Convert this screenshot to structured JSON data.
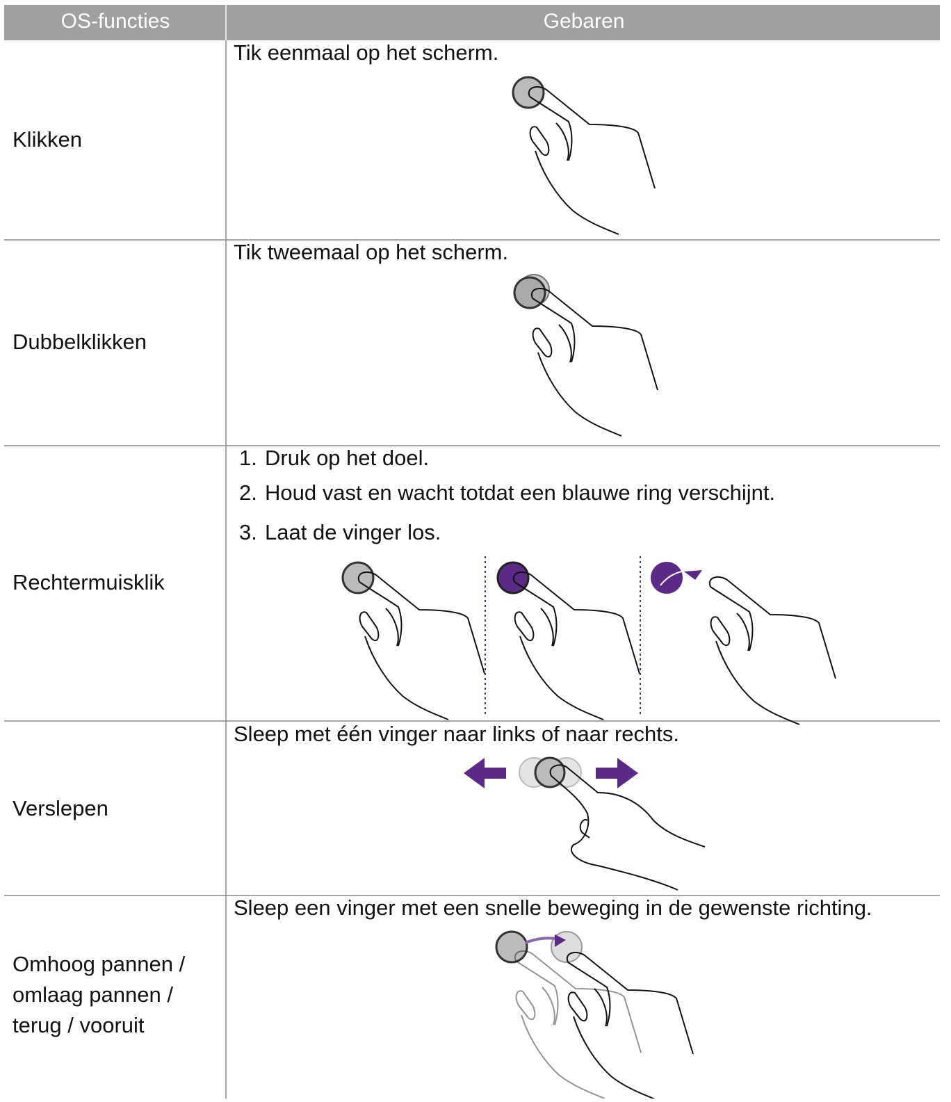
{
  "table": {
    "header": [
      "OS-functies",
      "Gebaren"
    ],
    "rows": [
      {
        "function": [
          "Klikken"
        ],
        "gesture": [
          "Tik eenmaal op het scherm."
        ]
      },
      {
        "function": [
          "Dubbelklikken"
        ],
        "gesture": [
          "Tik tweemaal op het scherm."
        ]
      },
      {
        "function": [
          "Rechtermuisklik"
        ],
        "steps": [
          {
            "number": "1.",
            "text": "Druk op het doel."
          },
          {
            "number": "2.",
            "text": "Houd vast en wacht totdat een blauwe ring verschijnt."
          },
          {
            "number": "3.",
            "text": "Laat de vinger los."
          }
        ]
      },
      {
        "function": [
          "Verslepen"
        ],
        "gesture": [
          "Sleep met één vinger naar links of naar rechts."
        ]
      },
      {
        "function": [
          "Omhoog pannen /",
          "omlaag pannen /",
          "terug / vooruit"
        ],
        "gesture": [
          "Sleep een vinger met een snelle beweging in de gewenste richting."
        ]
      }
    ]
  }
}
